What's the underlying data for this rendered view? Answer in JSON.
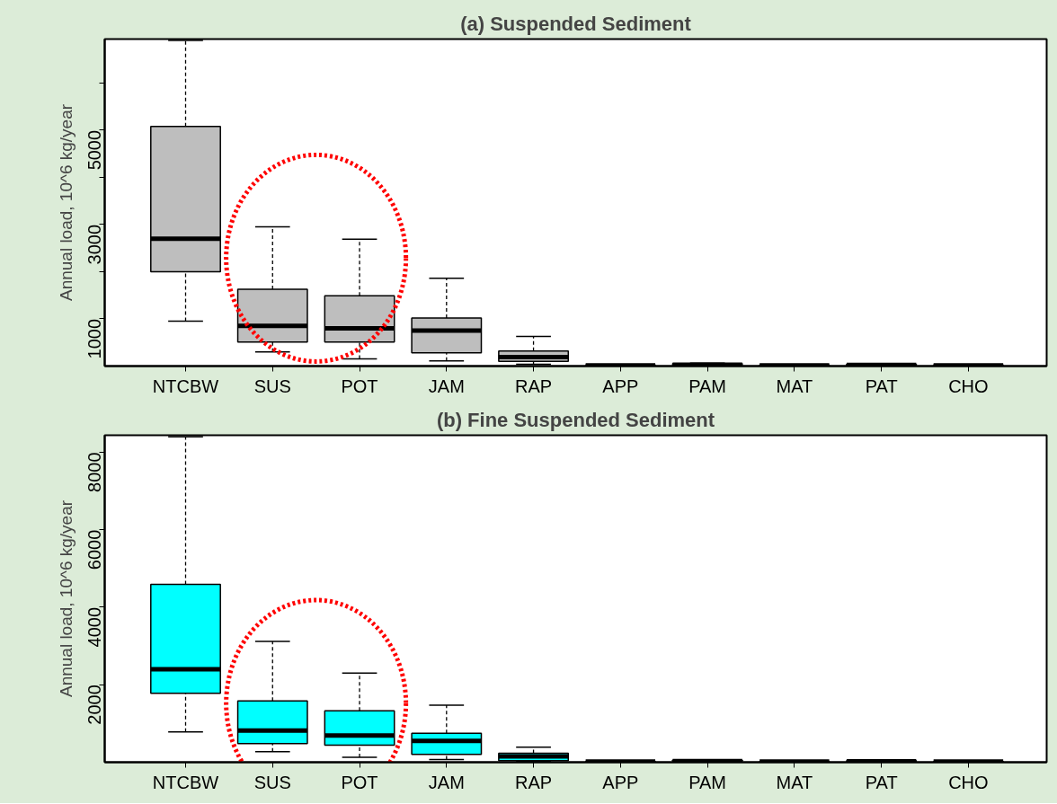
{
  "chart_data": [
    {
      "type": "box",
      "title": "(a) Suspended Sediment",
      "ylabel": "Annual load, 10^6 kg/year",
      "color": "#bebebe",
      "categories": [
        "NTCBW",
        "SUS",
        "POT",
        "JAM",
        "RAP",
        "APP",
        "PAM",
        "MAT",
        "PAT",
        "CHO"
      ],
      "boxes": [
        {
          "low": 950,
          "q1": 2000,
          "median": 2700,
          "q3": 5080,
          "high": 6900
        },
        {
          "low": 300,
          "q1": 510,
          "median": 850,
          "q3": 1630,
          "high": 2950
        },
        {
          "low": 150,
          "q1": 510,
          "median": 800,
          "q3": 1490,
          "high": 2690
        },
        {
          "low": 110,
          "q1": 280,
          "median": 750,
          "q3": 1020,
          "high": 1860
        },
        {
          "low": 40,
          "q1": 100,
          "median": 190,
          "q3": 320,
          "high": 630
        },
        {
          "low": 5,
          "q1": 10,
          "median": 15,
          "q3": 25,
          "high": 35
        },
        {
          "low": 10,
          "q1": 20,
          "median": 30,
          "q3": 50,
          "high": 60
        },
        {
          "low": 5,
          "q1": 10,
          "median": 15,
          "q3": 25,
          "high": 35
        },
        {
          "low": 10,
          "q1": 15,
          "median": 25,
          "q3": 40,
          "high": 50
        },
        {
          "low": 5,
          "q1": 10,
          "median": 15,
          "q3": 25,
          "high": 35
        }
      ],
      "ylim": [
        0,
        6930
      ],
      "yticks": [
        1000,
        {
          "value": 2000,
          "label": null
        },
        3000,
        {
          "value": 4000,
          "label": null
        },
        5000,
        {
          "value": 6000,
          "label": null
        }
      ],
      "grid": false
    },
    {
      "type": "box",
      "title": "(b) Fine Suspended Sediment",
      "ylabel": "Annual load, 10^6 kg/year",
      "color": "#00ffff",
      "categories": [
        "NTCBW",
        "SUS",
        "POT",
        "JAM",
        "RAP",
        "APP",
        "PAM",
        "MAT",
        "PAT",
        "CHO"
      ],
      "boxes": [
        {
          "low": 780,
          "q1": 1780,
          "median": 2400,
          "q3": 4590,
          "high": 8400
        },
        {
          "low": 270,
          "q1": 480,
          "median": 820,
          "q3": 1580,
          "high": 3120
        },
        {
          "low": 130,
          "q1": 440,
          "median": 690,
          "q3": 1330,
          "high": 2300
        },
        {
          "low": 70,
          "q1": 200,
          "median": 550,
          "q3": 750,
          "high": 1470
        },
        {
          "low": 20,
          "q1": 40,
          "median": 150,
          "q3": 230,
          "high": 390
        },
        {
          "low": 5,
          "q1": 10,
          "median": 15,
          "q3": 25,
          "high": 35
        },
        {
          "low": 10,
          "q1": 20,
          "median": 30,
          "q3": 50,
          "high": 60
        },
        {
          "low": 5,
          "q1": 10,
          "median": 15,
          "q3": 25,
          "high": 35
        },
        {
          "low": 10,
          "q1": 15,
          "median": 25,
          "q3": 40,
          "high": 50
        },
        {
          "low": 5,
          "q1": 10,
          "median": 15,
          "q3": 25,
          "high": 35
        }
      ],
      "ylim": [
        0,
        8440
      ],
      "yticks": [
        2000,
        4000,
        6000,
        8000
      ],
      "grid": false
    }
  ]
}
